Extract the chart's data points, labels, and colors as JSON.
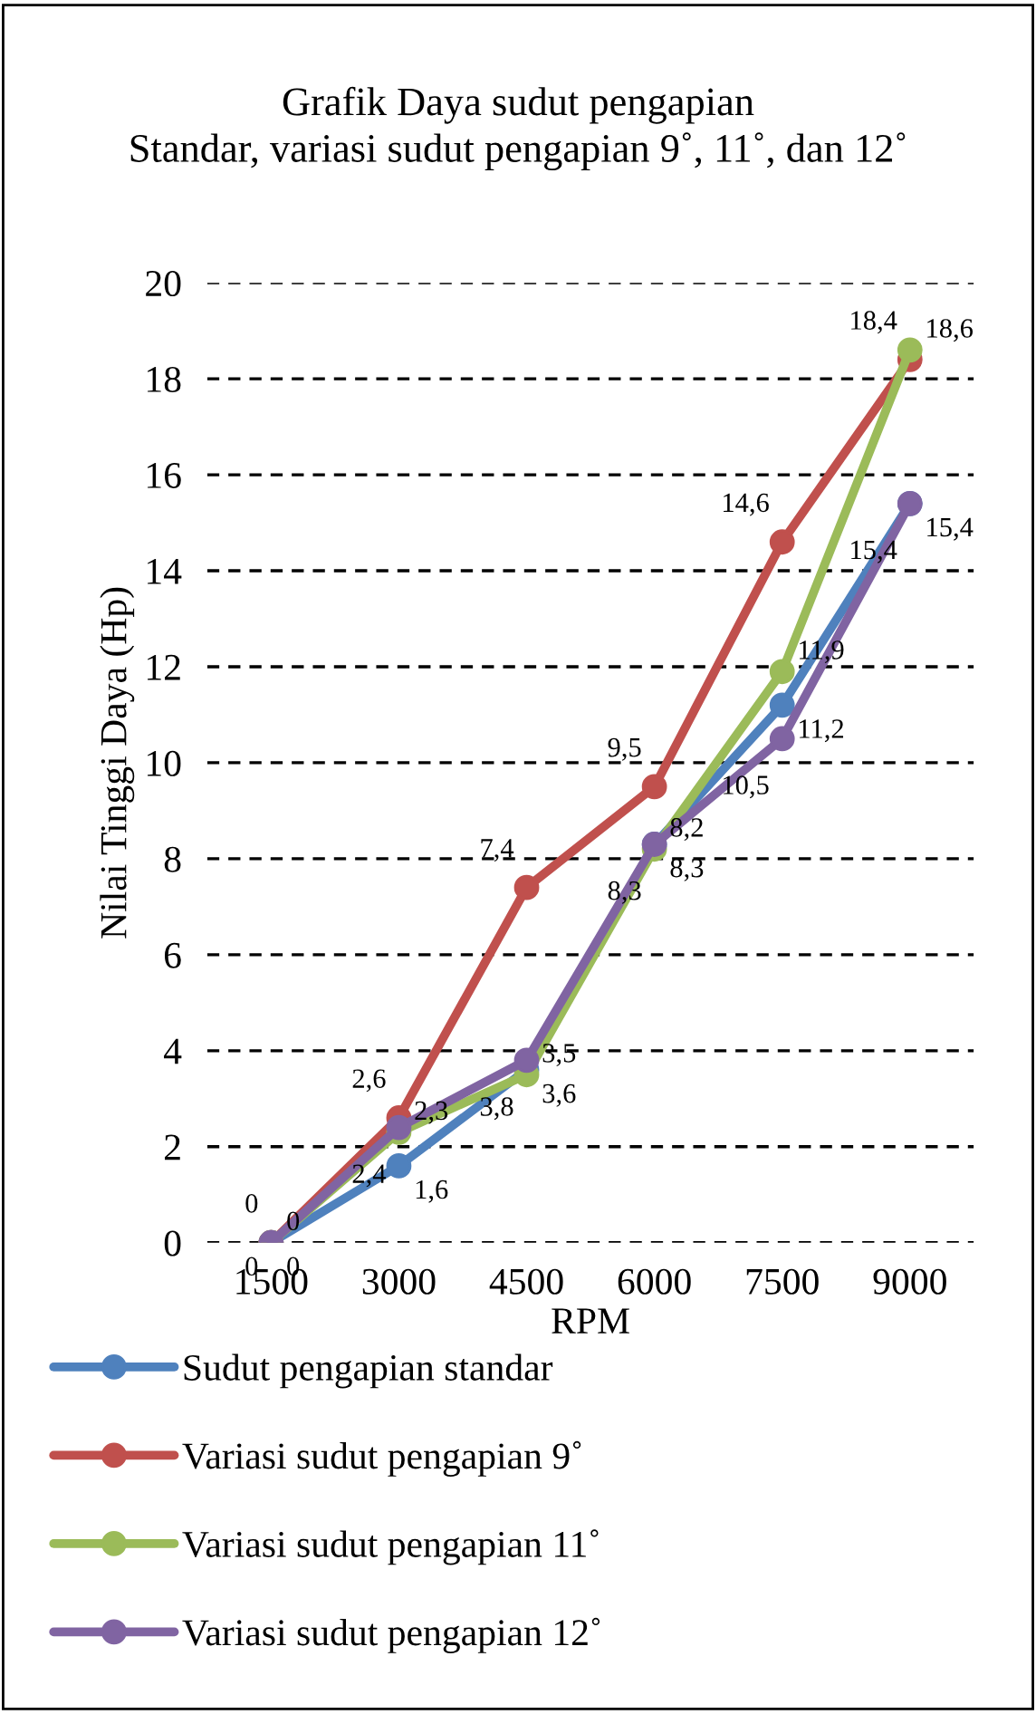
{
  "chart_data": {
    "type": "line",
    "title": "Grafik Daya sudut pengapian\nStandar, variasi sudut pengapian 9˚, 11˚, dan 12˚",
    "xlabel": "RPM",
    "ylabel": "Nilai Tinggi Daya (Hp)",
    "categories": [
      "1500",
      "3000",
      "4500",
      "6000",
      "7500",
      "9000"
    ],
    "series": [
      {
        "name": "Sudut pengapian standar",
        "color": "#4f81bd",
        "values": [
          0,
          1.6,
          3.6,
          8.3,
          11.2,
          15.4
        ],
        "value_labels": [
          "0",
          "1,6",
          "3,6",
          "8,3",
          "11,2",
          "15,4"
        ]
      },
      {
        "name": "Variasi sudut pengapian 9˚",
        "color": "#c0504d",
        "values": [
          0,
          2.6,
          7.4,
          9.5,
          14.6,
          18.4
        ],
        "value_labels": [
          "0",
          "2,6",
          "7,4",
          "9,5",
          "14,6",
          "18,4"
        ]
      },
      {
        "name": "Variasi sudut pengapian 11˚",
        "color": "#9bbb59",
        "values": [
          0,
          2.3,
          3.5,
          8.2,
          11.9,
          18.6
        ],
        "value_labels": [
          "0",
          "2,3",
          "3,5",
          "8,2",
          "11,9",
          "18,6"
        ]
      },
      {
        "name": "Variasi sudut pengapian 12˚",
        "color": "#8064a2",
        "values": [
          0,
          2.4,
          3.8,
          8.3,
          10.5,
          15.4
        ],
        "value_labels": [
          "0",
          "2,4",
          "3,8",
          "8,3",
          "10,5",
          "15,4"
        ]
      }
    ],
    "ylim": [
      0,
      20
    ],
    "yticks": [
      0,
      2,
      4,
      6,
      8,
      10,
      12,
      14,
      16,
      18,
      20
    ],
    "grid": "y",
    "legend": "bottom",
    "marker": "circle",
    "line_style": "solid"
  }
}
